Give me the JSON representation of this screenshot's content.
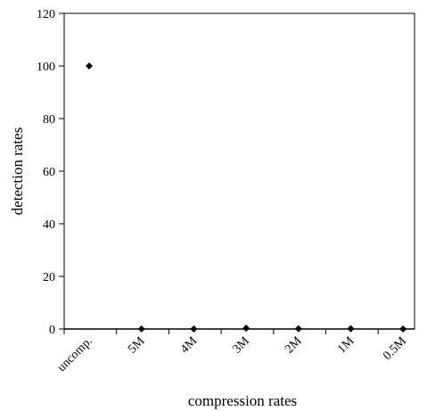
{
  "chart_data": {
    "type": "scatter",
    "title": "",
    "xlabel": "compression rates",
    "ylabel": "detection rates",
    "categories": [
      "uncomp.",
      "5M",
      "4M",
      "3M",
      "2M",
      "1M",
      "0.5M"
    ],
    "values": [
      100,
      0,
      0,
      0.3,
      0.1,
      0.1,
      0
    ],
    "ylim": [
      0,
      120
    ],
    "yticks": [
      "0",
      "20",
      "40",
      "60",
      "80",
      "100",
      "120"
    ],
    "grid": false,
    "legend": "none",
    "marker": "diamond",
    "colors": {
      "marker": "#000000",
      "axis": "#000000",
      "background": "#ffffff"
    }
  }
}
